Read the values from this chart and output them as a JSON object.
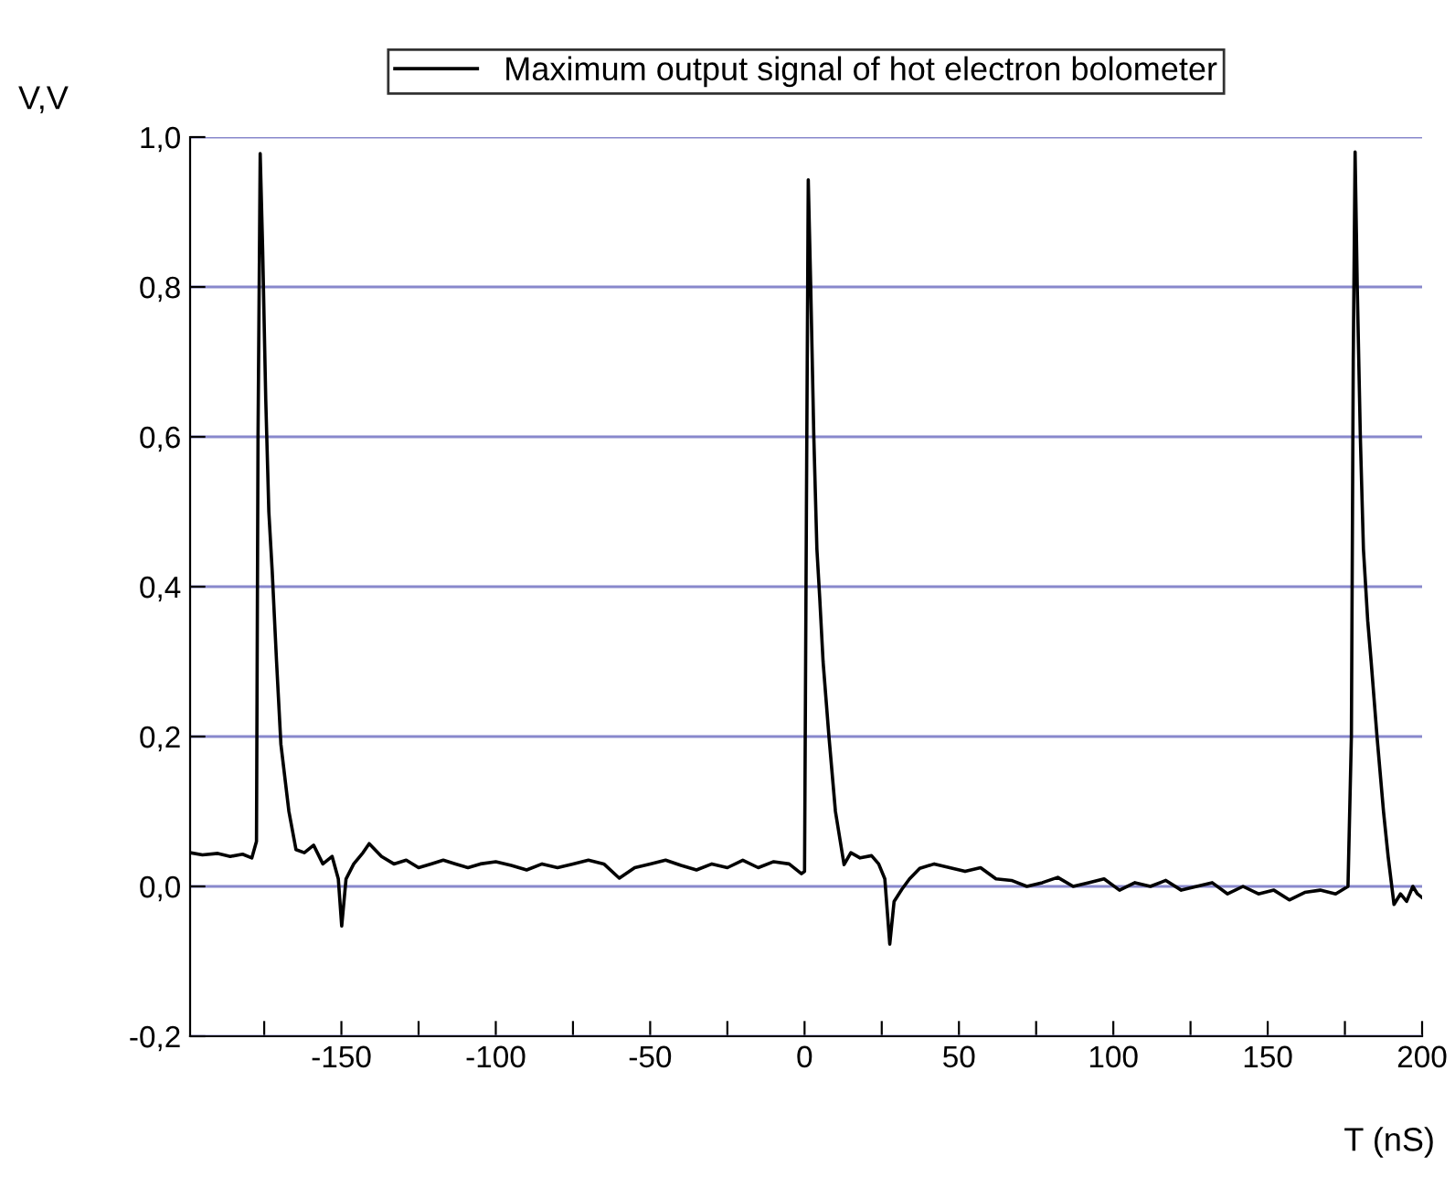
{
  "chart_data": {
    "type": "line",
    "xlabel": "T (nS)",
    "ylabel": "V,V",
    "legend": "top",
    "grid": "y",
    "line_style": "solid",
    "marker": "none",
    "xlim": [
      -199,
      200
    ],
    "ylim": [
      -0.2,
      1.0
    ],
    "xticks": [
      {
        "value": -175,
        "label": null
      },
      {
        "value": -150,
        "label": "-150"
      },
      {
        "value": -125,
        "label": null
      },
      {
        "value": -100,
        "label": "-100"
      },
      {
        "value": -75,
        "label": null
      },
      {
        "value": -50,
        "label": "-50"
      },
      {
        "value": -25,
        "label": null
      },
      0,
      {
        "value": 25,
        "label": null
      },
      50,
      {
        "value": 75,
        "label": null
      },
      100,
      {
        "value": 125,
        "label": null
      },
      150,
      {
        "value": 175,
        "label": null
      },
      200
    ],
    "yticks": [
      {
        "value": -0.2,
        "label": "-0,2"
      },
      {
        "value": 0,
        "label": "0,0"
      },
      {
        "value": 0.2,
        "label": "0,2"
      },
      {
        "value": 0.4,
        "label": "0,4"
      },
      {
        "value": 0.6,
        "label": "0,6"
      },
      {
        "value": 0.8,
        "label": "0,8"
      },
      {
        "value": 1.0,
        "label": "1,0"
      }
    ],
    "series": [
      {
        "name": "Maximum output signal of hot electron bolometer",
        "color": "#000000",
        "x": [
          -199,
          -195,
          -190,
          -186,
          -182,
          -179,
          -177.5,
          -177,
          -176.3,
          -175.5,
          -174.5,
          -173.5,
          -172.4,
          -171,
          -169.6,
          -167,
          -164.7,
          -162,
          -159,
          -156,
          -153,
          -151,
          -149.9,
          -148.5,
          -146,
          -143,
          -141,
          -137,
          -133,
          -129,
          -125,
          -121,
          -117,
          -113,
          -109,
          -105,
          -100,
          -95,
          -90,
          -85,
          -80,
          -75,
          -70,
          -65,
          -60,
          -55,
          -50,
          -45,
          -40,
          -35,
          -30,
          -25,
          -20,
          -15,
          -10,
          -5,
          -1,
          0,
          0.6,
          1.2,
          2,
          3,
          4,
          4.9,
          6,
          7.9,
          10,
          12.8,
          15,
          18,
          21.7,
          24,
          26,
          27.6,
          29,
          31.5,
          34,
          37.3,
          42,
          47,
          52,
          57,
          62,
          67,
          72,
          77,
          82,
          87,
          92,
          97,
          102,
          107,
          112,
          117,
          122,
          127,
          132,
          137,
          142,
          147,
          152,
          157,
          162,
          167,
          172,
          176,
          177.1,
          177.7,
          178.3,
          179,
          180,
          181,
          182.4,
          183.5,
          185.4,
          187.5,
          189,
          190.9,
          193,
          195,
          197,
          198.5,
          200
        ],
        "values": [
          0.045,
          0.042,
          0.044,
          0.04,
          0.043,
          0.038,
          0.06,
          0.6,
          0.978,
          0.85,
          0.65,
          0.5,
          0.42,
          0.3,
          0.19,
          0.1,
          0.049,
          0.045,
          0.055,
          0.03,
          0.04,
          0.01,
          -0.053,
          0.01,
          0.03,
          0.045,
          0.057,
          0.04,
          0.03,
          0.035,
          0.025,
          0.03,
          0.035,
          0.03,
          0.025,
          0.03,
          0.033,
          0.028,
          0.022,
          0.03,
          0.025,
          0.03,
          0.035,
          0.03,
          0.011,
          0.025,
          0.03,
          0.035,
          0.028,
          0.022,
          0.03,
          0.025,
          0.035,
          0.025,
          0.033,
          0.03,
          0.017,
          0.02,
          0.5,
          0.943,
          0.8,
          0.6,
          0.45,
          0.386,
          0.3,
          0.2,
          0.1,
          0.029,
          0.045,
          0.038,
          0.041,
          0.03,
          0.01,
          -0.077,
          -0.02,
          -0.004,
          0.01,
          0.024,
          0.03,
          0.025,
          0.02,
          0.025,
          0.01,
          0.008,
          0.0,
          0.005,
          0.012,
          0.0,
          0.005,
          0.01,
          -0.005,
          0.005,
          0.0,
          0.008,
          -0.005,
          0.0,
          0.005,
          -0.01,
          0.0,
          -0.01,
          -0.005,
          -0.018,
          -0.008,
          -0.005,
          -0.01,
          0.0,
          0.2,
          0.7,
          0.98,
          0.8,
          0.6,
          0.45,
          0.354,
          0.3,
          0.2,
          0.1,
          0.04,
          -0.024,
          -0.01,
          -0.02,
          0.0,
          -0.01,
          -0.015
        ]
      }
    ]
  }
}
